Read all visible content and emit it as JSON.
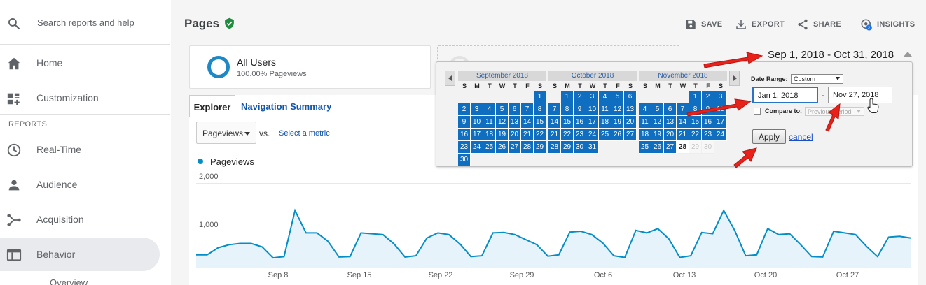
{
  "sidebar": {
    "search_placeholder": "Search reports and help",
    "items": [
      {
        "label": "Home"
      },
      {
        "label": "Customization"
      }
    ],
    "section_label": "REPORTS",
    "report_items": [
      {
        "label": "Real-Time"
      },
      {
        "label": "Audience"
      },
      {
        "label": "Acquisition"
      },
      {
        "label": "Behavior"
      }
    ],
    "sub_item": "Overview"
  },
  "header": {
    "title": "Pages",
    "save": "SAVE",
    "export": "EXPORT",
    "share": "SHARE",
    "insights": "INSIGHTS",
    "insights_badge": "2"
  },
  "segment": {
    "name": "All Users",
    "sub": "100.00% Pageviews",
    "add_label": "Add Segment"
  },
  "date_range_display": "Sep 1, 2018 - Oct 31, 2018",
  "report": {
    "tabs": [
      "Explorer",
      "Navigation Summary"
    ],
    "metric": "Pageviews",
    "vs": "vs.",
    "select_metric": "Select a metric",
    "legend": "Pageviews"
  },
  "chart_data": {
    "type": "area",
    "series": [
      {
        "name": "Pageviews",
        "values": [
          300,
          300,
          470,
          540,
          570,
          570,
          490,
          230,
          260,
          1350,
          820,
          820,
          620,
          250,
          260,
          820,
          800,
          780,
          560,
          250,
          280,
          700,
          820,
          780,
          560,
          260,
          280,
          820,
          830,
          780,
          660,
          540,
          270,
          300,
          840,
          860,
          780,
          580,
          280,
          240,
          880,
          820,
          920,
          680,
          240,
          280,
          830,
          800,
          1350,
          880,
          280,
          300,
          920,
          780,
          800,
          540,
          260,
          250,
          860,
          820,
          780,
          500,
          260,
          720,
          740,
          700
        ]
      }
    ],
    "ylim": [
      0,
      2000
    ],
    "yticks": [
      "2,000",
      "1,000"
    ],
    "xticks": [
      "Sep 8",
      "Sep 15",
      "Sep 22",
      "Sep 29",
      "Oct 6",
      "Oct 13",
      "Oct 20",
      "Oct 27"
    ]
  },
  "picker": {
    "months": [
      {
        "title": "September 2018",
        "lead": 6,
        "days": 30,
        "selected_to": 30,
        "grey_from": 99,
        "today": 0
      },
      {
        "title": "October 2018",
        "lead": 1,
        "days": 31,
        "selected_to": 31,
        "grey_from": 99,
        "today": 0
      },
      {
        "title": "November 2018",
        "lead": 4,
        "days": 30,
        "selected_to": 27,
        "grey_from": 29,
        "today": 28
      }
    ],
    "dow": [
      "S",
      "M",
      "T",
      "W",
      "T",
      "F",
      "S"
    ],
    "date_range_label": "Date Range:",
    "date_range_value": "Custom",
    "start": "Jan 1, 2018",
    "end": "Nov 27, 2018",
    "dash": "-",
    "compare_label": "Compare to:",
    "compare_value": "Previous period",
    "apply": "Apply",
    "cancel": "cancel"
  },
  "colors": {
    "selected_day": "#0f6ebf",
    "chart_line": "#058dc7",
    "annotation_arrow": "#e8221b",
    "verified": "#1e8e3e"
  }
}
